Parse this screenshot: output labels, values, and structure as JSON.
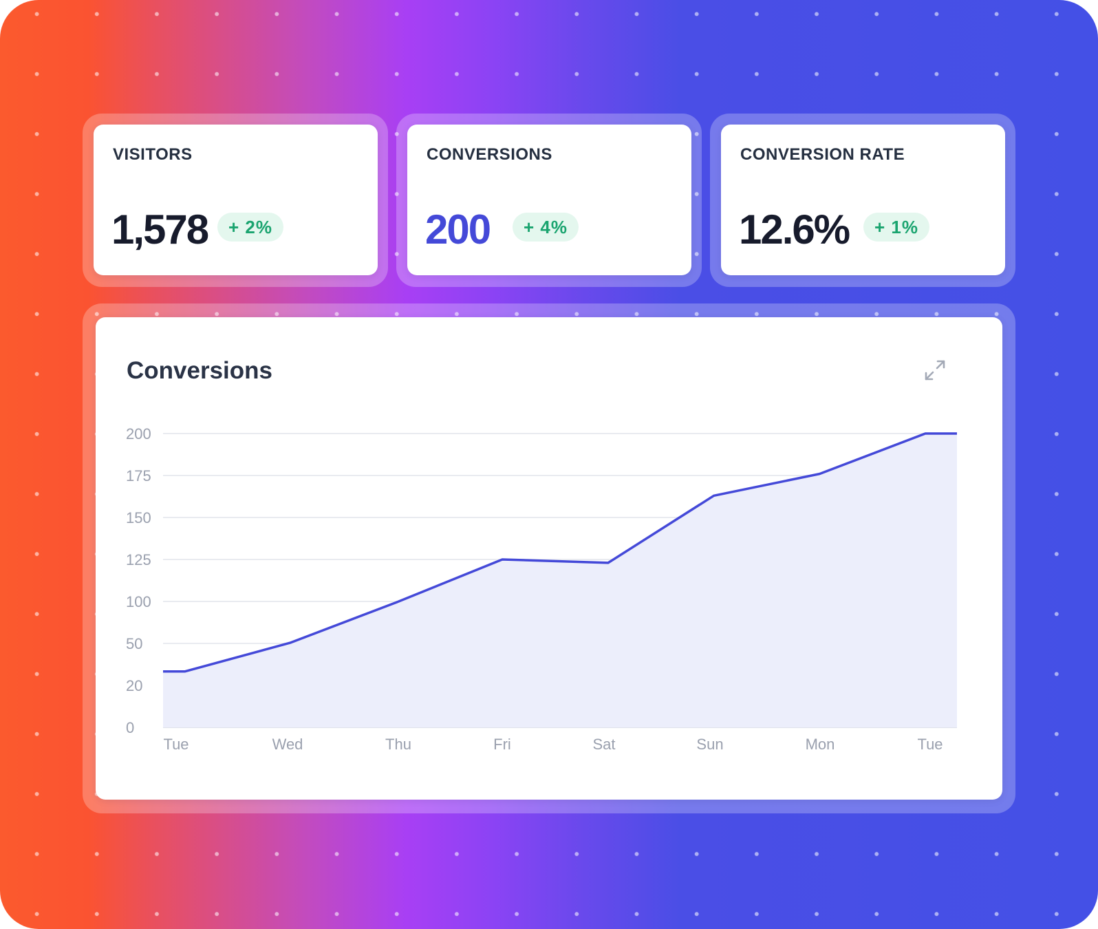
{
  "stats": [
    {
      "label": "VISITORS",
      "value": "1,578",
      "change": "+ 2%"
    },
    {
      "label": "CONVERSIONS",
      "value": "200",
      "change": "+ 4%"
    },
    {
      "label": "CONVERSION RATE",
      "value": "12.6%",
      "change": "+ 1%"
    }
  ],
  "chart": {
    "title": "Conversions",
    "expand_icon": "expand-arrows-icon"
  },
  "colors": {
    "accent": "#4449d8",
    "positive": "#1aa46f",
    "positive_bg": "#e4f7ee",
    "area_fill": "#eceefb"
  },
  "chart_data": {
    "type": "area",
    "title": "Conversions",
    "categories": [
      "Tue",
      "Wed",
      "Thu",
      "Fri",
      "Sat",
      "Sun",
      "Mon",
      "Tue"
    ],
    "y_ticks": [
      "200",
      "175",
      "150",
      "125",
      "100",
      "50",
      "20",
      "0"
    ],
    "values": [
      30,
      51,
      99,
      125,
      123,
      163,
      176,
      200
    ],
    "series": [
      {
        "values": [
          30,
          51,
          99,
          125,
          123,
          163,
          176,
          200
        ]
      }
    ],
    "y_axis_note": "tick labels are evenly spaced but non-linear in value",
    "grid": true,
    "legend": "none"
  }
}
